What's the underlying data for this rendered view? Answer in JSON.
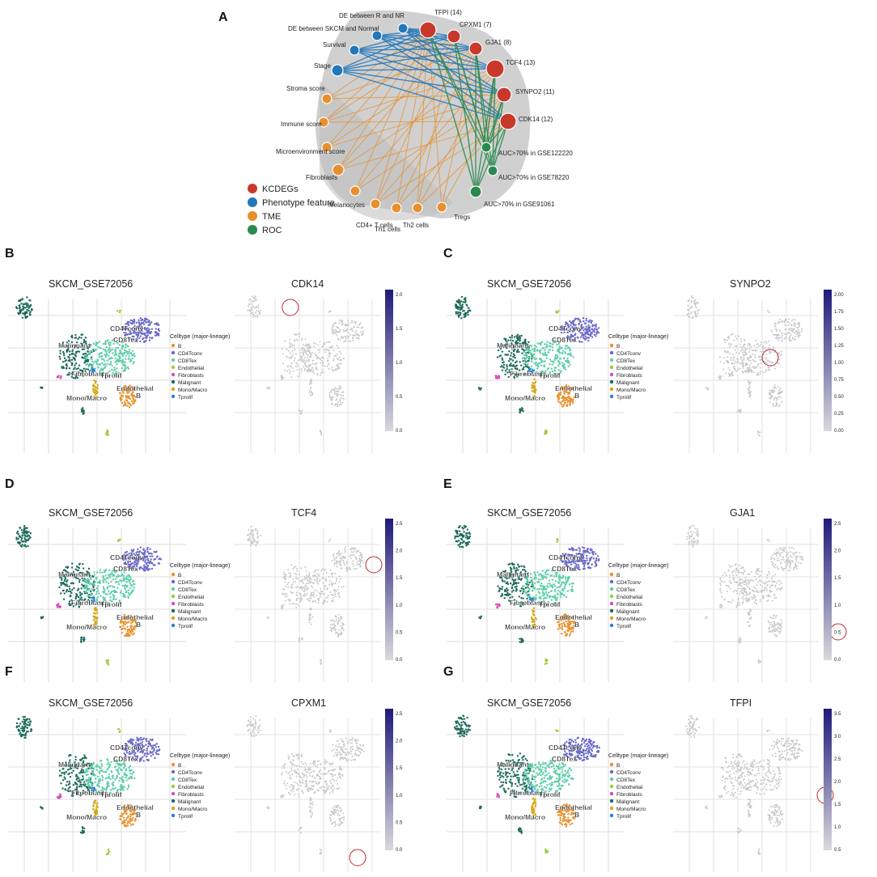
{
  "figure": {
    "panel_letters": [
      "A",
      "B",
      "C",
      "D",
      "E",
      "F",
      "G"
    ],
    "network": {
      "nodes": [
        {
          "id": "kc_tfpi",
          "label": "TFPI (14)",
          "group": "KCDEGs",
          "degree": 14
        },
        {
          "id": "kc_cpxm1",
          "label": "CPXM1 (7)",
          "group": "KCDEGs",
          "degree": 7
        },
        {
          "id": "kc_gja1",
          "label": "GJA1 (8)",
          "group": "KCDEGs",
          "degree": 8
        },
        {
          "id": "kc_tcf4",
          "label": "TCF4 (13)",
          "group": "KCDEGs",
          "degree": 13
        },
        {
          "id": "kc_synpo2",
          "label": "SYNPO2 (11)",
          "group": "KCDEGs",
          "degree": 11
        },
        {
          "id": "kc_cdk14",
          "label": "CDK14 (12)",
          "group": "KCDEGs",
          "degree": 12
        },
        {
          "id": "ph_de_rnr",
          "label": "DE between R and NR",
          "group": "Phenotype feature"
        },
        {
          "id": "ph_de_skcm",
          "label": "DE between SKCM and Normal",
          "group": "Phenotype feature"
        },
        {
          "id": "ph_survival",
          "label": "Survival",
          "group": "Phenotype feature"
        },
        {
          "id": "ph_stage",
          "label": "Stage",
          "group": "Phenotype feature"
        },
        {
          "id": "tme_stroma",
          "label": "Stroma score",
          "group": "TME"
        },
        {
          "id": "tme_immune",
          "label": "Immune score",
          "group": "TME"
        },
        {
          "id": "tme_micro",
          "label": "Microenvironment score",
          "group": "TME"
        },
        {
          "id": "tme_fibro",
          "label": "Fibroblasts",
          "group": "TME"
        },
        {
          "id": "tme_melano",
          "label": "Melanocytes",
          "group": "TME"
        },
        {
          "id": "tme_cd4",
          "label": "CD4+ T cells",
          "group": "TME"
        },
        {
          "id": "tme_th1",
          "label": "Th1 cells",
          "group": "TME"
        },
        {
          "id": "tme_th2",
          "label": "Th2 cells",
          "group": "TME"
        },
        {
          "id": "tme_tregs",
          "label": "Tregs",
          "group": "TME"
        },
        {
          "id": "roc_122220",
          "label": "AUC>70% in GSE122220",
          "group": "ROC"
        },
        {
          "id": "roc_78220",
          "label": "AUC>70% in GSE78220",
          "group": "ROC"
        },
        {
          "id": "roc_91061",
          "label": "AUC>70% in GSE91061",
          "group": "ROC"
        }
      ],
      "legend": [
        {
          "label": "KCDEGs",
          "color": "#c8392b"
        },
        {
          "label": "Phenotype feature",
          "color": "#2277bb"
        },
        {
          "label": "TME",
          "color": "#e8902e"
        },
        {
          "label": "ROC",
          "color": "#2a8a4e"
        }
      ],
      "edge_colors": {
        "phenotype": "#2277bb",
        "tme": "#e8902e",
        "roc": "#2a8a4e"
      }
    },
    "umap_panels": [
      {
        "letter": "B",
        "dataset": "SKCM_GSE72056",
        "gene": "CDK14",
        "colorbar_ticks": [
          "2.0",
          "1.5",
          "1.0",
          "0.5",
          "0.0"
        ]
      },
      {
        "letter": "C",
        "dataset": "SKCM_GSE72056",
        "gene": "SYNPO2",
        "colorbar_ticks": [
          "2.00",
          "1.75",
          "1.50",
          "1.25",
          "1.00",
          "0.75",
          "0.50",
          "0.25",
          "0.00"
        ]
      },
      {
        "letter": "D",
        "dataset": "SKCM_GSE72056",
        "gene": "TCF4",
        "colorbar_ticks": [
          "2.5",
          "2.0",
          "1.5",
          "1.0",
          "0.5",
          "0.0"
        ]
      },
      {
        "letter": "E",
        "dataset": "SKCM_GSE72056",
        "gene": "GJA1",
        "colorbar_ticks": [
          "2.5",
          "2.0",
          "1.5",
          "1.0",
          "0.5",
          "0.0"
        ]
      },
      {
        "letter": "F",
        "dataset": "SKCM_GSE72056",
        "gene": "CPXM1",
        "colorbar_ticks": [
          "2.5",
          "2.0",
          "1.5",
          "1.0",
          "0.5",
          "0.0"
        ]
      },
      {
        "letter": "G",
        "dataset": "SKCM_GSE72056",
        "gene": "TFPI",
        "colorbar_ticks": [
          "3.5",
          "3.0",
          "2.5",
          "2.0",
          "1.5",
          "1.0",
          "0.5"
        ]
      }
    ],
    "celltype_legend": {
      "title": "Celltype (major-lineage)",
      "items": [
        {
          "label": "B",
          "color": "#e8922e"
        },
        {
          "label": "CD4Tconv",
          "color": "#6a6ac8"
        },
        {
          "label": "CD8Tex",
          "color": "#5fcfa8"
        },
        {
          "label": "Endothelial",
          "color": "#9ccc3a"
        },
        {
          "label": "Fibroblasts",
          "color": "#d24fb6"
        },
        {
          "label": "Malignant",
          "color": "#1d6b5a"
        },
        {
          "label": "Mono/Macro",
          "color": "#d4a814"
        },
        {
          "label": "Tprolif",
          "color": "#2a7fd4"
        }
      ]
    },
    "cluster_labels": [
      "Malignant",
      "CD4Tconv",
      "CD8Tex",
      "Fibroblasts",
      "Tprolif",
      "Mono/Macro",
      "Endothelial",
      "B"
    ]
  }
}
